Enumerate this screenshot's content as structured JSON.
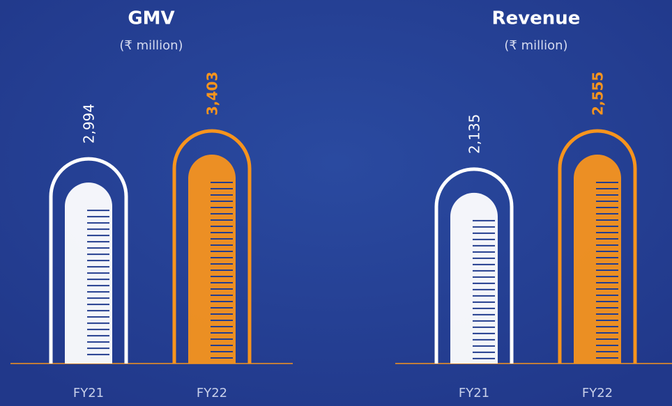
{
  "chart_data": [
    {
      "type": "bar",
      "title": "GMV",
      "subtitle": "(₹ million)",
      "categories": [
        "FY21",
        "FY22"
      ],
      "values": [
        2994,
        3403
      ],
      "value_labels": [
        "2,994",
        "3,403"
      ],
      "colors": [
        "#ffffff",
        "#f7941d"
      ]
    },
    {
      "type": "bar",
      "title": "Revenue",
      "subtitle": "(₹ million)",
      "categories": [
        "FY21",
        "FY22"
      ],
      "values": [
        2135,
        2555
      ],
      "value_labels": [
        "2,135",
        "2,555"
      ],
      "colors": [
        "#ffffff",
        "#f7941d"
      ]
    }
  ]
}
